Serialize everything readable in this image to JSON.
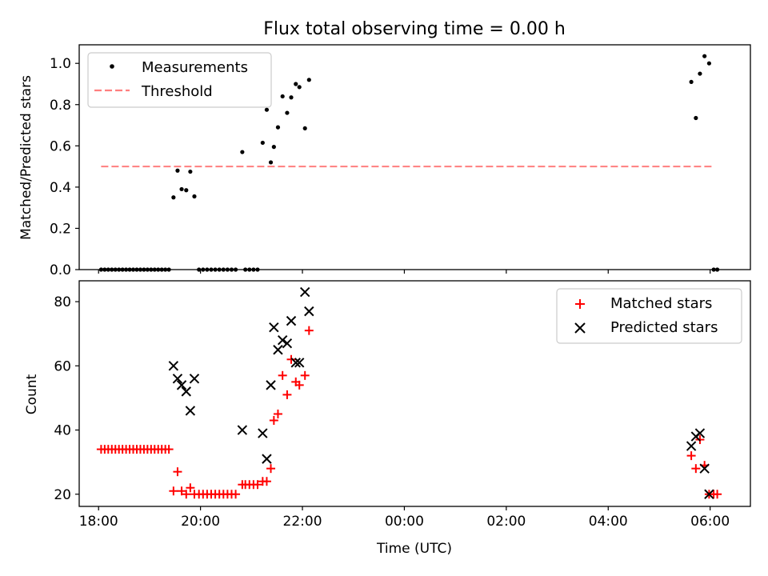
{
  "chart_data": [
    {
      "type": "scatter",
      "title": "Flux total observing time = 0.00 h",
      "xlabel": "",
      "ylabel": "Matched/Predicted stars",
      "xlim": [
        17.62,
        30.79
      ],
      "ylim": [
        0.0,
        1.09
      ],
      "x_ticks": [
        18,
        20,
        22,
        24,
        26,
        28,
        30
      ],
      "y_ticks": [
        0.0,
        0.2,
        0.4,
        0.6,
        0.8,
        1.0
      ],
      "y_tick_labels": [
        "0.0",
        "0.2",
        "0.4",
        "0.6",
        "0.8",
        "1.0"
      ],
      "legend": {
        "position": "upper left",
        "entries": [
          "Measurements",
          "Threshold"
        ]
      },
      "threshold": {
        "value": 0.5,
        "x_range": [
          18.05,
          30.05
        ],
        "color": "#ff7f7f"
      },
      "series": [
        {
          "name": "Measurements",
          "marker": "dot",
          "color": "#000000",
          "points": [
            [
              18.05,
              0
            ],
            [
              18.12,
              0
            ],
            [
              18.19,
              0
            ],
            [
              18.26,
              0
            ],
            [
              18.33,
              0
            ],
            [
              18.4,
              0
            ],
            [
              18.47,
              0
            ],
            [
              18.54,
              0
            ],
            [
              18.61,
              0
            ],
            [
              18.68,
              0
            ],
            [
              18.75,
              0
            ],
            [
              18.82,
              0
            ],
            [
              18.89,
              0
            ],
            [
              18.96,
              0
            ],
            [
              19.03,
              0
            ],
            [
              19.1,
              0
            ],
            [
              19.17,
              0
            ],
            [
              19.24,
              0
            ],
            [
              19.31,
              0
            ],
            [
              19.38,
              0
            ],
            [
              19.47,
              0.35
            ],
            [
              19.55,
              0.48
            ],
            [
              19.63,
              0.39
            ],
            [
              19.72,
              0.385
            ],
            [
              19.8,
              0.475
            ],
            [
              19.88,
              0.355
            ],
            [
              19.97,
              0
            ],
            [
              20.05,
              0
            ],
            [
              20.13,
              0
            ],
            [
              20.21,
              0
            ],
            [
              20.29,
              0
            ],
            [
              20.37,
              0
            ],
            [
              20.45,
              0
            ],
            [
              20.53,
              0
            ],
            [
              20.61,
              0
            ],
            [
              20.69,
              0
            ],
            [
              20.82,
              0.57
            ],
            [
              20.88,
              0
            ],
            [
              20.96,
              0
            ],
            [
              21.04,
              0
            ],
            [
              21.12,
              0
            ],
            [
              21.22,
              0.615
            ],
            [
              21.3,
              0.775
            ],
            [
              21.38,
              0.52
            ],
            [
              21.44,
              0.595
            ],
            [
              21.52,
              0.69
            ],
            [
              21.61,
              0.84
            ],
            [
              21.7,
              0.76
            ],
            [
              21.78,
              0.835
            ],
            [
              21.87,
              0.9
            ],
            [
              21.94,
              0.885
            ],
            [
              22.05,
              0.685
            ],
            [
              22.13,
              0.92
            ],
            [
              29.63,
              0.91
            ],
            [
              29.72,
              0.735
            ],
            [
              29.8,
              0.95
            ],
            [
              29.89,
              1.035
            ],
            [
              29.98,
              1.0
            ],
            [
              30.07,
              0
            ],
            [
              30.14,
              0
            ]
          ]
        }
      ]
    },
    {
      "type": "scatter",
      "title": "",
      "xlabel": "Time (UTC)",
      "ylabel": "Count",
      "xlim": [
        17.62,
        30.79
      ],
      "ylim": [
        16.2,
        86.5
      ],
      "x_ticks": [
        18,
        20,
        22,
        24,
        26,
        28,
        30
      ],
      "x_tick_labels": [
        "18:00",
        "20:00",
        "22:00",
        "00:00",
        "02:00",
        "04:00",
        "06:00"
      ],
      "y_ticks": [
        20,
        40,
        60,
        80
      ],
      "y_tick_labels": [
        "20",
        "40",
        "60",
        "80"
      ],
      "legend": {
        "position": "upper right",
        "entries": [
          "Matched stars",
          "Predicted stars"
        ]
      },
      "series": [
        {
          "name": "Matched stars",
          "marker": "plus",
          "color": "#ff0000",
          "points": [
            [
              18.05,
              34
            ],
            [
              18.12,
              34
            ],
            [
              18.19,
              34
            ],
            [
              18.26,
              34
            ],
            [
              18.33,
              34
            ],
            [
              18.4,
              34
            ],
            [
              18.47,
              34
            ],
            [
              18.54,
              34
            ],
            [
              18.61,
              34
            ],
            [
              18.68,
              34
            ],
            [
              18.75,
              34
            ],
            [
              18.82,
              34
            ],
            [
              18.89,
              34
            ],
            [
              18.96,
              34
            ],
            [
              19.03,
              34
            ],
            [
              19.1,
              34
            ],
            [
              19.17,
              34
            ],
            [
              19.24,
              34
            ],
            [
              19.31,
              34
            ],
            [
              19.38,
              34
            ],
            [
              19.47,
              21
            ],
            [
              19.55,
              27
            ],
            [
              19.63,
              21
            ],
            [
              19.72,
              20
            ],
            [
              19.8,
              22
            ],
            [
              19.88,
              20
            ],
            [
              19.97,
              20
            ],
            [
              20.05,
              20
            ],
            [
              20.13,
              20
            ],
            [
              20.21,
              20
            ],
            [
              20.29,
              20
            ],
            [
              20.37,
              20
            ],
            [
              20.45,
              20
            ],
            [
              20.53,
              20
            ],
            [
              20.61,
              20
            ],
            [
              20.69,
              20
            ],
            [
              20.82,
              23
            ],
            [
              20.88,
              23
            ],
            [
              20.96,
              23
            ],
            [
              21.04,
              23
            ],
            [
              21.12,
              23
            ],
            [
              21.22,
              24
            ],
            [
              21.3,
              24
            ],
            [
              21.38,
              28
            ],
            [
              21.44,
              43
            ],
            [
              21.52,
              45
            ],
            [
              21.61,
              57
            ],
            [
              21.7,
              51
            ],
            [
              21.78,
              62
            ],
            [
              21.87,
              55
            ],
            [
              21.94,
              54
            ],
            [
              22.05,
              57
            ],
            [
              22.13,
              71
            ],
            [
              29.63,
              32
            ],
            [
              29.72,
              28
            ],
            [
              29.8,
              37
            ],
            [
              29.89,
              29
            ],
            [
              29.98,
              20
            ],
            [
              30.07,
              20
            ],
            [
              30.14,
              20
            ]
          ]
        },
        {
          "name": "Predicted stars",
          "marker": "x",
          "color": "#000000",
          "points": [
            [
              19.47,
              60
            ],
            [
              19.55,
              56
            ],
            [
              19.63,
              54
            ],
            [
              19.72,
              52
            ],
            [
              19.8,
              46
            ],
            [
              19.88,
              56
            ],
            [
              20.82,
              40
            ],
            [
              21.22,
              39
            ],
            [
              21.3,
              31
            ],
            [
              21.38,
              54
            ],
            [
              21.44,
              72
            ],
            [
              21.52,
              65
            ],
            [
              21.61,
              68
            ],
            [
              21.7,
              67
            ],
            [
              21.78,
              74
            ],
            [
              21.87,
              61
            ],
            [
              21.94,
              61
            ],
            [
              22.05,
              83
            ],
            [
              22.13,
              77
            ],
            [
              29.63,
              35
            ],
            [
              29.72,
              38
            ],
            [
              29.8,
              39
            ],
            [
              29.89,
              28
            ],
            [
              29.98,
              20
            ]
          ]
        }
      ]
    }
  ]
}
